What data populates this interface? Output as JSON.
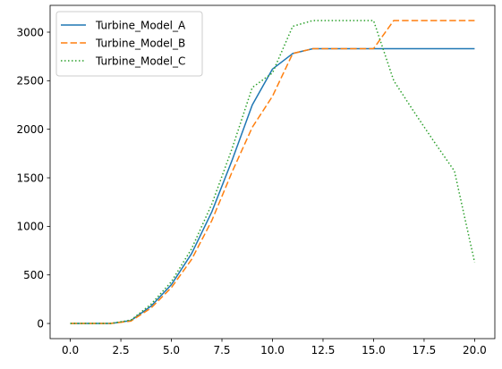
{
  "chart_data": {
    "type": "line",
    "title": "",
    "xlabel": "",
    "ylabel": "",
    "xlim": [
      -1.0,
      21.0
    ],
    "ylim": [
      -156,
      3276
    ],
    "x_ticks": [
      0.0,
      2.5,
      5.0,
      7.5,
      10.0,
      12.5,
      15.0,
      17.5,
      20.0
    ],
    "x_tick_labels": [
      "0.0",
      "2.5",
      "5.0",
      "7.5",
      "10.0",
      "12.5",
      "15.0",
      "17.5",
      "20.0"
    ],
    "y_ticks": [
      0,
      500,
      1000,
      1500,
      2000,
      2500,
      3000
    ],
    "y_tick_labels": [
      "0",
      "500",
      "1000",
      "1500",
      "2000",
      "2500",
      "3000"
    ],
    "grid": false,
    "legend_position": "upper left",
    "x": [
      0,
      1,
      2,
      3,
      4,
      5,
      6,
      7,
      8,
      9,
      10,
      11,
      12,
      13,
      14,
      15,
      16,
      17,
      18,
      19,
      20
    ],
    "series": [
      {
        "name": "Turbine_Model_A",
        "color": "#1f77b4",
        "dash": "solid",
        "values": [
          0,
          0,
          0,
          30,
          180,
          400,
          720,
          1150,
          1680,
          2250,
          2620,
          2780,
          2830,
          2830,
          2830,
          2830,
          2830,
          2830,
          2830,
          2830,
          2830
        ]
      },
      {
        "name": "Turbine_Model_B",
        "color": "#ff7f0e",
        "dash": "dashed",
        "values": [
          0,
          0,
          0,
          25,
          160,
          370,
          660,
          1060,
          1560,
          2020,
          2340,
          2780,
          2830,
          2830,
          2830,
          2830,
          3120,
          3120,
          3120,
          3120,
          3120
        ]
      },
      {
        "name": "Turbine_Model_C",
        "color": "#2ca02c",
        "dash": "dotted",
        "values": [
          0,
          0,
          0,
          35,
          200,
          430,
          770,
          1230,
          1800,
          2430,
          2580,
          3060,
          3120,
          3120,
          3120,
          3120,
          2500,
          2180,
          1870,
          1570,
          630
        ]
      }
    ]
  }
}
